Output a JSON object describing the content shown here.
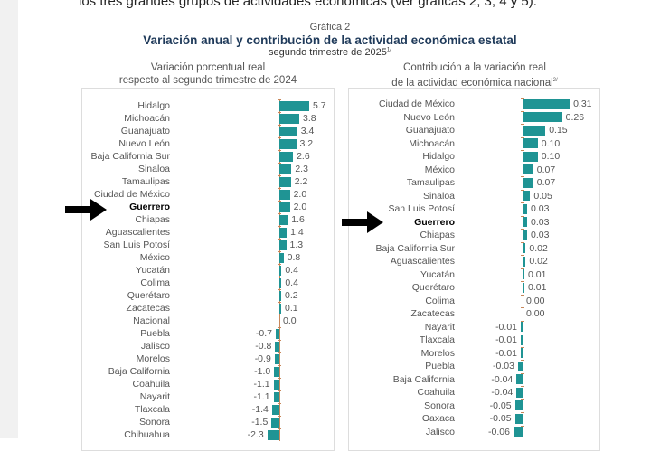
{
  "intro_text": "los tres grandes grupos de actividades económicas (ver gráficas 2, 3, 4 y 5).",
  "figure_label": "Gráfica 2",
  "title": "Variación anual y contribución de la actividad económica estatal",
  "subtitle": "segundo trimestre de 2025",
  "subtitle_note": "1/",
  "highlight": "Guerrero",
  "colors": {
    "bar": "#1f9494",
    "axis": "#c8875a",
    "title": "#1f3a5a"
  },
  "chart_data": [
    {
      "type": "bar",
      "orientation": "horizontal",
      "title_line1": "Variación porcentual real",
      "title_line2": "respecto al segundo trimestre de 2024",
      "categories": [
        "Hidalgo",
        "Michoacán",
        "Guanajuato",
        "Nuevo León",
        "Baja California Sur",
        "Sinaloa",
        "Tamaulipas",
        "Ciudad de México",
        "Guerrero",
        "Chiapas",
        "Aguascalientes",
        "San Luis Potosí",
        "México",
        "Yucatán",
        "Colima",
        "Querétaro",
        "Zacatecas",
        "Nacional",
        "Puebla",
        "Jalisco",
        "Morelos",
        "Baja California",
        "Coahuila",
        "Nayarit",
        "Tlaxcala",
        "Sonora",
        "Chihuahua"
      ],
      "values": [
        5.7,
        3.8,
        3.4,
        3.2,
        2.6,
        2.3,
        2.2,
        2.0,
        2.0,
        1.6,
        1.4,
        1.3,
        0.8,
        0.4,
        0.4,
        0.2,
        0.1,
        0.0,
        -0.7,
        -0.8,
        -0.9,
        -1.0,
        -1.1,
        -1.1,
        -1.4,
        -1.5,
        -2.3
      ],
      "labels": [
        "5.7",
        "3.8",
        "3.4",
        "3.2",
        "2.6",
        "2.3",
        "2.2",
        "2.0",
        "2.0",
        "1.6",
        "1.4",
        "1.3",
        "0.8",
        "0.4",
        "0.4",
        "0.2",
        "0.1",
        "0.0",
        "-0.7",
        "-0.8",
        "-0.9",
        "-1.0",
        "-1.1",
        "-1.1",
        "-1.4",
        "-1.5",
        "-2.3"
      ]
    },
    {
      "type": "bar",
      "orientation": "horizontal",
      "title_line1": "Contribución a la variación real",
      "title_line2": "de la actividad económica nacional",
      "title_note": "2/",
      "categories": [
        "Ciudad de México",
        "Nuevo León",
        "Guanajuato",
        "Michoacán",
        "Hidalgo",
        "México",
        "Tamaulipas",
        "Sinaloa",
        "San Luis Potosí",
        "Guerrero",
        "Chiapas",
        "Baja California Sur",
        "Aguascalientes",
        "Yucatán",
        "Querétaro",
        "Colima",
        "Zacatecas",
        "Nayarit",
        "Tlaxcala",
        "Morelos",
        "Puebla",
        "Baja California",
        "Coahuila",
        "Sonora",
        "Oaxaca",
        "Jalisco"
      ],
      "values": [
        0.31,
        0.26,
        0.15,
        0.1,
        0.1,
        0.07,
        0.07,
        0.05,
        0.03,
        0.03,
        0.03,
        0.02,
        0.02,
        0.01,
        0.01,
        0.0,
        0.0,
        -0.01,
        -0.01,
        -0.01,
        -0.03,
        -0.04,
        -0.04,
        -0.05,
        -0.05,
        -0.06
      ],
      "labels": [
        "0.31",
        "0.26",
        "0.15",
        "0.10",
        "0.10",
        "0.07",
        "0.07",
        "0.05",
        "0.03",
        "0.03",
        "0.03",
        "0.02",
        "0.02",
        "0.01",
        "0.01",
        "0.00",
        "0.00",
        "-0.01",
        "-0.01",
        "-0.01",
        "-0.03",
        "-0.04",
        "-0.04",
        "-0.05",
        "-0.05",
        "-0.06"
      ]
    }
  ]
}
